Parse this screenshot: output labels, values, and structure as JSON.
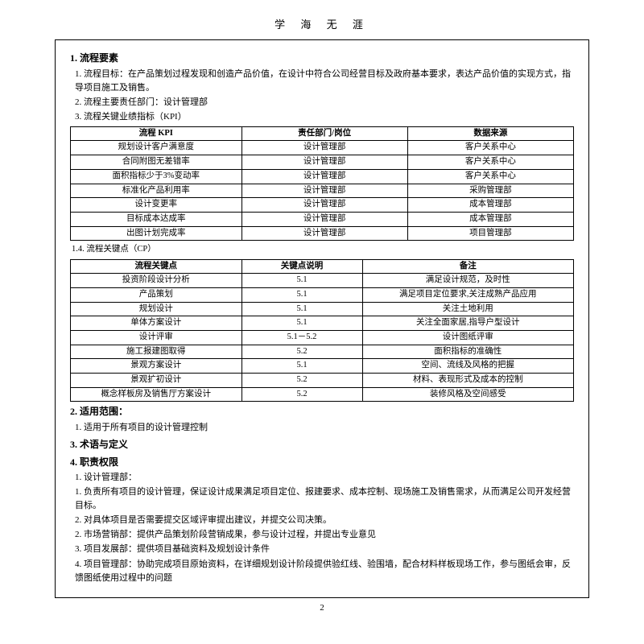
{
  "header": "学 海 无 涯",
  "s1": {
    "title": "1. 流程要素",
    "goal_label": "1. 流程目标：",
    "goal_text": "在产品策划过程发现和创造产品价值，在设计中符合公司经营目标及政府基本要求，表达产品价值的实现方式，指导项目施工及销售。",
    "dept_label": "2. 流程主要责任部门：",
    "dept_text": "设计管理部",
    "kpi_label": "3. 流程关键业绩指标（KPI）",
    "kpi_cols": [
      "流程 KPI",
      "责任部门/岗位",
      "数据来源"
    ],
    "kpi_rows": [
      [
        "规划设计客户满意度",
        "设计管理部",
        "客户关系中心"
      ],
      [
        "合同附图无差错率",
        "设计管理部",
        "客户关系中心"
      ],
      [
        "面积指标少于3%变动率",
        "设计管理部",
        "客户关系中心"
      ],
      [
        "标准化产品利用率",
        "设计管理部",
        "采购管理部"
      ],
      [
        "设计变更率",
        "设计管理部",
        "成本管理部"
      ],
      [
        "目标成本达成率",
        "设计管理部",
        "成本管理部"
      ],
      [
        "出图计划完成率",
        "设计管理部",
        "项目管理部"
      ]
    ],
    "cp_label": "1.4. 流程关键点（CP）",
    "cp_cols": [
      "流程关键点",
      "关键点说明",
      "备注"
    ],
    "cp_rows": [
      [
        "投资阶段设计分析",
        "5.1",
        "满足设计规范，及时性"
      ],
      [
        "产品策划",
        "5.1",
        "满足项目定位要求,关注成熟产品应用"
      ],
      [
        "规划设计",
        "5.1",
        "关注土地利用"
      ],
      [
        "单体方案设计",
        "5.1",
        "关注全面家居,指导户型设计"
      ],
      [
        "设计评审",
        "5.1－5.2",
        "设计图纸评审"
      ],
      [
        "施工报建图取得",
        "5.2",
        "面积指标的准确性"
      ],
      [
        "景观方案设计",
        "5.1",
        "空间、流线及风格的把握"
      ],
      [
        "景观扩初设计",
        "5.2",
        "材料、表现形式及成本的控制"
      ],
      [
        "概念样板房及销售厅方案设计",
        "5.2",
        "装修风格及空间感受"
      ]
    ]
  },
  "s2": {
    "title": "2. 适用范围：",
    "item": "1. 适用于所有项目的设计管理控制"
  },
  "s3": {
    "title": "3. 术语与定义"
  },
  "s4": {
    "title": "4. 职责权限",
    "d1_label": "1. 设计管理部：",
    "d1_a": "1. 负责所有项目的设计管理，保证设计成果满足项目定位、报建要求、成本控制、现场施工及销售需求，从而满足公司开发经营目标。",
    "d1_b": "2. 对具体项目是否需要提交区域评审提出建议，并提交公司决策。",
    "d2": "2. 市场营销部：提供产品策划阶段营销成果，参与设计过程，并提出专业意见",
    "d3": "3. 项目发展部：提供项目基础资料及规划设计条件",
    "d4": "4. 项目管理部：协助完成项目原始资料，在详细规划设计阶段提供验红线、验围墙，配合材料样板现场工作，参与图纸会审，反馈图纸使用过程中的问题"
  },
  "page_num": "2",
  "colors": {
    "text": "#000000",
    "bg": "#ffffff",
    "border": "#000000"
  },
  "typography": {
    "body_fontsize": 11,
    "title_fontsize": 12,
    "table_fontsize": 10.5
  }
}
